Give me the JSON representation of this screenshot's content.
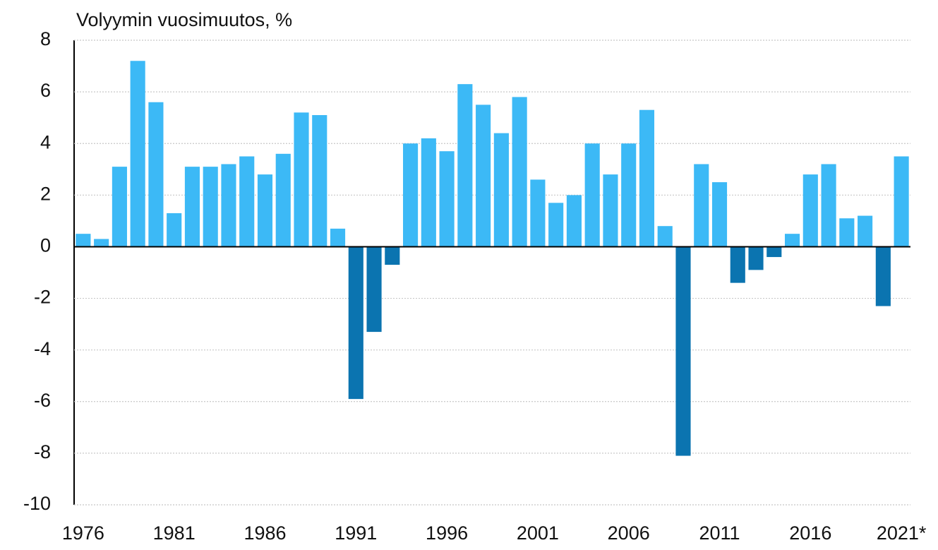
{
  "chart_data": {
    "type": "bar",
    "title": "Volyymin vuosimuutos, %",
    "categories": [
      "1976",
      null,
      null,
      null,
      null,
      "1981",
      null,
      null,
      null,
      null,
      "1986",
      null,
      null,
      null,
      null,
      "1991",
      null,
      null,
      null,
      null,
      "1996",
      null,
      null,
      null,
      null,
      "2001",
      null,
      null,
      null,
      null,
      "2006",
      null,
      null,
      null,
      null,
      "2011",
      null,
      null,
      null,
      null,
      "2016",
      null,
      null,
      null,
      null,
      "2021*"
    ],
    "values": [
      0.5,
      0.3,
      3.1,
      7.2,
      5.6,
      1.3,
      3.1,
      3.1,
      3.2,
      3.5,
      2.8,
      3.6,
      5.2,
      5.1,
      0.7,
      -5.9,
      -3.3,
      -0.7,
      4.0,
      4.2,
      3.7,
      6.3,
      5.5,
      4.4,
      5.8,
      2.6,
      1.7,
      2.0,
      4.0,
      2.8,
      4.0,
      5.3,
      0.8,
      -8.1,
      3.2,
      2.5,
      -1.4,
      -0.9,
      -0.4,
      0.5,
      2.8,
      3.2,
      1.1,
      1.2,
      -2.3,
      3.5
    ],
    "positive_color": "#3cb9f6",
    "negative_color": "#0b74b0",
    "ylim": [
      -10,
      8
    ],
    "yticks": [
      -10,
      -8,
      -6,
      -4,
      -2,
      0,
      2,
      4,
      6,
      8
    ],
    "grid": true
  }
}
